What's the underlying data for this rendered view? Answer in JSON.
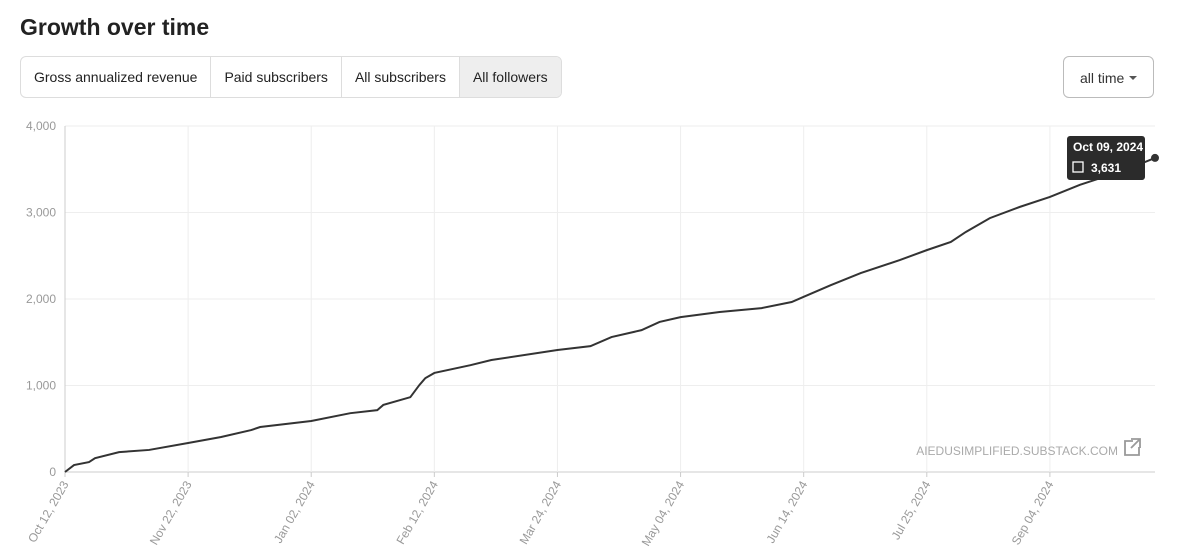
{
  "header": {
    "title": "Growth over time"
  },
  "tabs": [
    "Gross annualized revenue",
    "Paid subscribers",
    "All subscribers",
    "All followers"
  ],
  "active_tab": "All followers",
  "range_select": "all time",
  "chart_data": {
    "type": "line",
    "x": [
      "2023-10-12",
      "2023-10-15",
      "2023-10-20",
      "2023-10-22",
      "2023-10-30",
      "2023-11-09",
      "2023-11-22",
      "2023-12-03",
      "2023-12-13",
      "2023-12-16",
      "2024-01-02",
      "2024-01-15",
      "2024-01-24",
      "2024-01-26",
      "2024-02-04",
      "2024-02-07",
      "2024-02-09",
      "2024-02-12",
      "2024-02-24",
      "2024-03-02",
      "2024-03-24",
      "2024-04-04",
      "2024-04-11",
      "2024-04-21",
      "2024-04-27",
      "2024-05-04",
      "2024-05-17",
      "2024-05-31",
      "2024-06-10",
      "2024-06-14",
      "2024-06-23",
      "2024-07-03",
      "2024-07-16",
      "2024-07-25",
      "2024-08-02",
      "2024-08-07",
      "2024-08-15",
      "2024-08-25",
      "2024-09-04",
      "2024-09-14",
      "2024-09-21",
      "2024-09-29",
      "2024-10-09"
    ],
    "series": [
      {
        "name": "All followers",
        "color": "#333333",
        "values": [
          0,
          80,
          115,
          160,
          230,
          255,
          335,
          405,
          485,
          520,
          590,
          680,
          715,
          775,
          865,
          1005,
          1085,
          1145,
          1235,
          1295,
          1410,
          1455,
          1560,
          1640,
          1735,
          1790,
          1850,
          1895,
          1965,
          2025,
          2160,
          2300,
          2450,
          2565,
          2660,
          2775,
          2935,
          3065,
          3180,
          3320,
          3400,
          3490,
          3631
        ]
      }
    ],
    "xlim": [
      "2023-10-12",
      "2024-10-09"
    ],
    "xticks": [
      {
        "value": "2023-10-12",
        "label": "Oct 12, 2023"
      },
      {
        "value": "2023-11-22",
        "label": "Nov 22, 2023"
      },
      {
        "value": "2024-01-02",
        "label": "Jan 02, 2024"
      },
      {
        "value": "2024-02-12",
        "label": "Feb 12, 2024"
      },
      {
        "value": "2024-03-24",
        "label": "Mar 24, 2024"
      },
      {
        "value": "2024-05-04",
        "label": "May 04, 2024"
      },
      {
        "value": "2024-06-14",
        "label": "Jun 14, 2024"
      },
      {
        "value": "2024-07-25",
        "label": "Jul 25, 2024"
      },
      {
        "value": "2024-09-04",
        "label": "Sep 04, 2024"
      }
    ],
    "ylim": [
      0,
      4000
    ],
    "yticks": [
      0,
      {
        "value": 1000,
        "label": "1,000"
      },
      {
        "value": 2000,
        "label": "2,000"
      },
      {
        "value": 3000,
        "label": "3,000"
      },
      {
        "value": 4000,
        "label": "4,000"
      }
    ],
    "grid": true,
    "tooltip": {
      "title": "Oct 09, 2024",
      "label": "3,631"
    },
    "watermark": "AIEDUSIMPLIFIED.SUBSTACK.COM"
  }
}
